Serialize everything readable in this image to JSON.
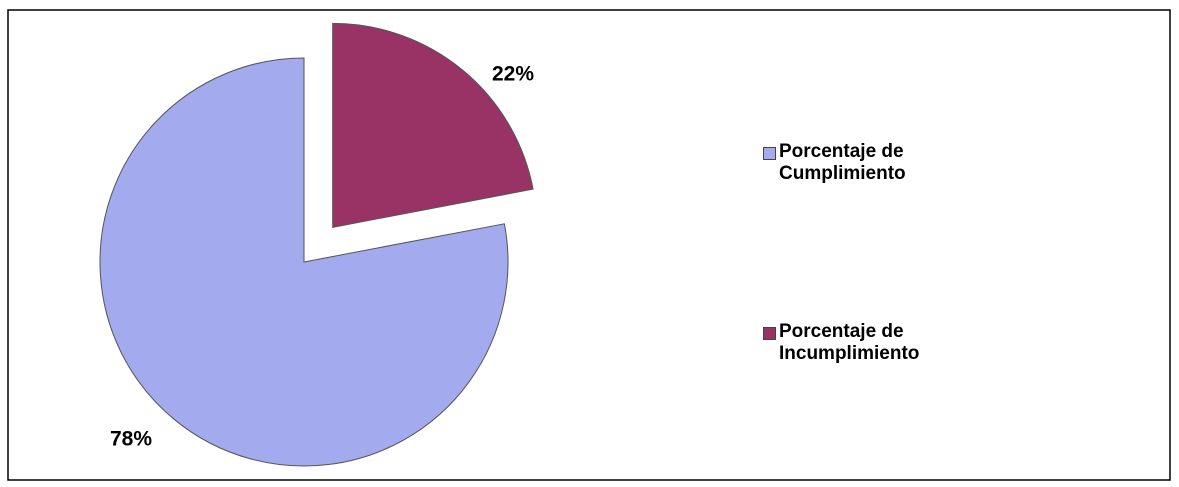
{
  "chart_data": {
    "type": "pie",
    "categories": [
      "Porcentaje de Cumplimiento",
      "Porcentaje de Incumplimiento"
    ],
    "values": [
      78,
      22
    ],
    "value_labels": [
      "78%",
      "22%"
    ],
    "colors": [
      "#a3aaee",
      "#993366"
    ],
    "explode": [
      false,
      true
    ],
    "legend": "right"
  }
}
